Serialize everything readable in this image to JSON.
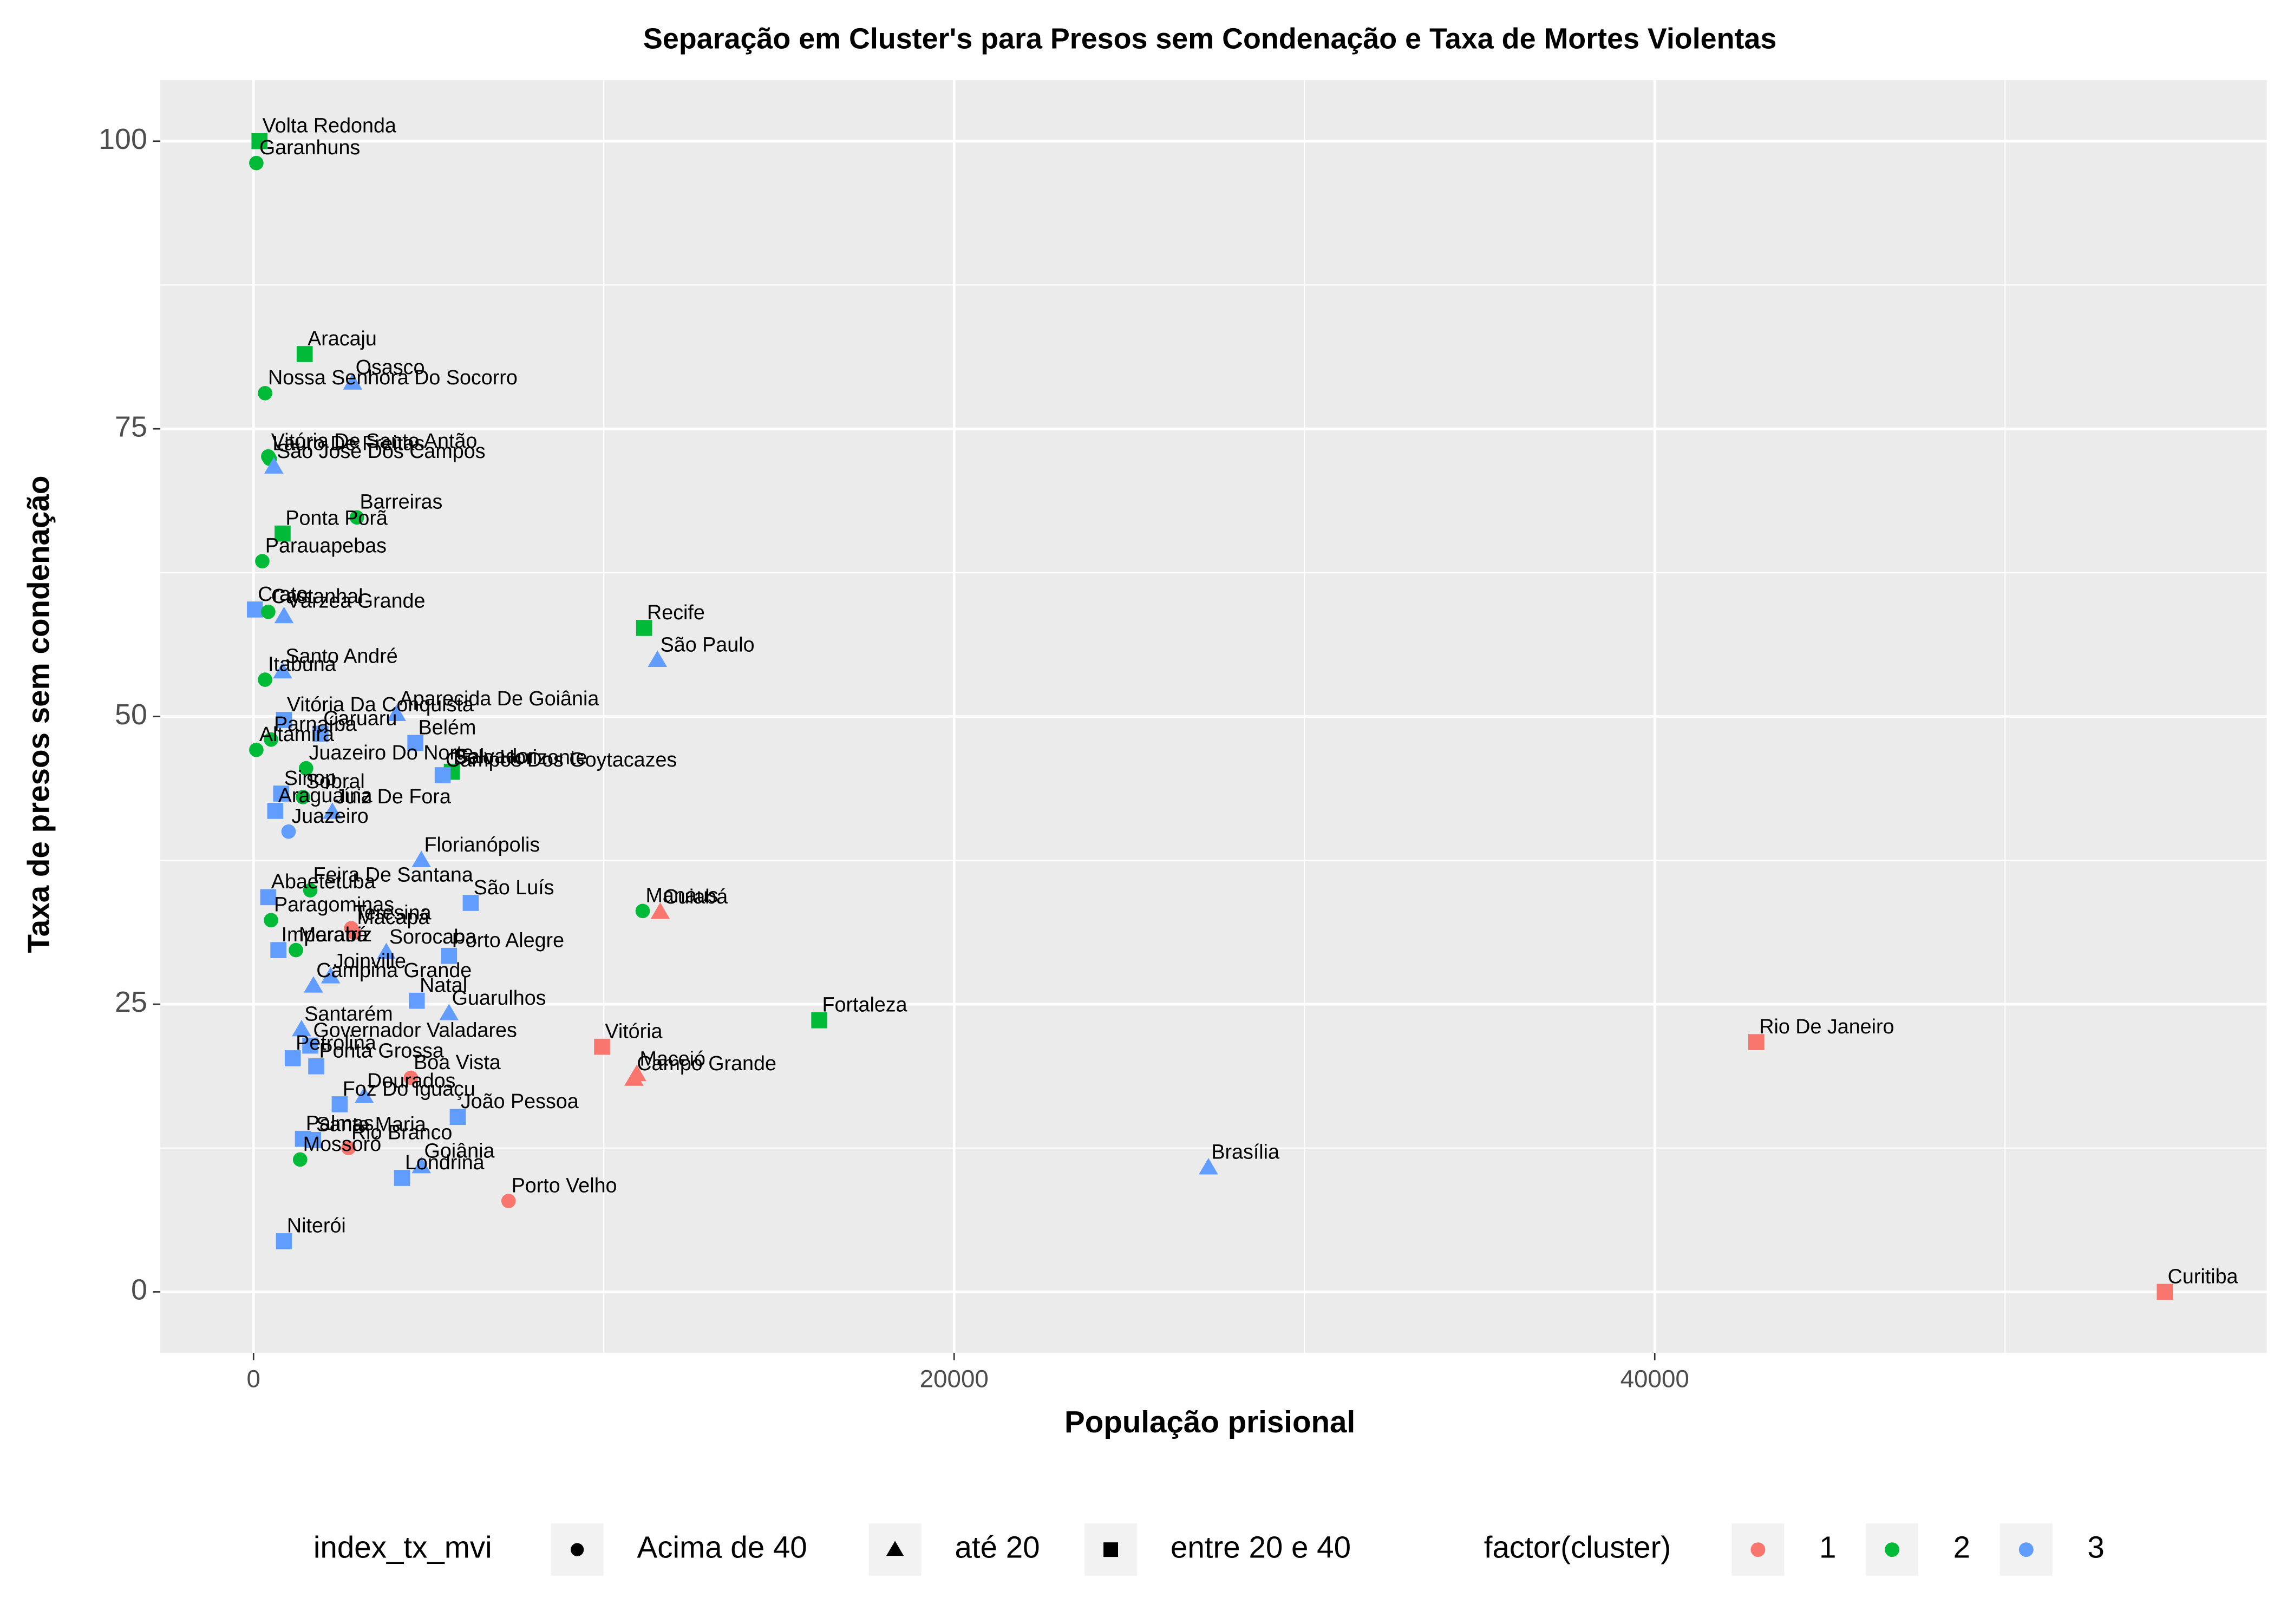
{
  "chart_data": {
    "type": "scatter",
    "title": "Separação em Cluster's para Presos sem Condenação e Taxa de Mortes Violentas",
    "x_label": "População prisional",
    "y_label": "Taxa de presos sem condenação",
    "xlim": [
      -2660,
      57470
    ],
    "ylim": [
      -5.3,
      105.3
    ],
    "xticks": [
      0,
      20000,
      40000
    ],
    "yticks": [
      0,
      25,
      50,
      75,
      100
    ],
    "grid": true,
    "legend_position": "bottom",
    "shape_legend": {
      "title": "index_tx_mvi",
      "entries": [
        "Acima de 40",
        "até 20",
        "entre 20 e 40"
      ]
    },
    "color_legend": {
      "title": "factor(cluster)",
      "entries": [
        {
          "name": "1",
          "color": "#F8766D"
        },
        {
          "name": "2",
          "color": "#00BA38"
        },
        {
          "name": "3",
          "color": "#619CFF"
        }
      ]
    },
    "points": [
      {
        "label": "Volta Redonda",
        "x": 170,
        "y": 100,
        "shape": 2,
        "cluster": 1
      },
      {
        "label": "Garanhuns",
        "x": 80,
        "y": 98.1,
        "shape": 0,
        "cluster": 1
      },
      {
        "label": "Aracaju",
        "x": 1460,
        "y": 81.5,
        "shape": 2,
        "cluster": 1
      },
      {
        "label": "Osasco",
        "x": 2830,
        "y": 79.0,
        "shape": 1,
        "cluster": 2
      },
      {
        "label": "Nossa Senhora Do Socorro",
        "x": 330,
        "y": 78.1,
        "shape": 0,
        "cluster": 1
      },
      {
        "label": "Vitória De Santo Antão",
        "x": 420,
        "y": 72.6,
        "shape": 0,
        "cluster": 1
      },
      {
        "label": "Lauro De Freitas",
        "x": 460,
        "y": 72.4,
        "shape": 0,
        "cluster": 1
      },
      {
        "label": "São José Dos Campos",
        "x": 580,
        "y": 71.7,
        "shape": 1,
        "cluster": 2
      },
      {
        "label": "Barreiras",
        "x": 2950,
        "y": 67.3,
        "shape": 0,
        "cluster": 1
      },
      {
        "label": "Ponta Porã",
        "x": 830,
        "y": 65.9,
        "shape": 2,
        "cluster": 1
      },
      {
        "label": "Parauapebas",
        "x": 250,
        "y": 63.5,
        "shape": 0,
        "cluster": 1
      },
      {
        "label": "Crato",
        "x": 40,
        "y": 59.3,
        "shape": 2,
        "cluster": 2
      },
      {
        "label": "Castanhal",
        "x": 420,
        "y": 59.1,
        "shape": 0,
        "cluster": 1
      },
      {
        "label": "Várzea Grande",
        "x": 870,
        "y": 58.7,
        "shape": 1,
        "cluster": 2
      },
      {
        "label": "Recife",
        "x": 11150,
        "y": 57.7,
        "shape": 2,
        "cluster": 1
      },
      {
        "label": "São Paulo",
        "x": 11530,
        "y": 54.9,
        "shape": 1,
        "cluster": 2
      },
      {
        "label": "Santo André",
        "x": 830,
        "y": 53.9,
        "shape": 1,
        "cluster": 2
      },
      {
        "label": "Itabuna",
        "x": 330,
        "y": 53.2,
        "shape": 0,
        "cluster": 1
      },
      {
        "label": "Aparecida De Goiânia",
        "x": 4080,
        "y": 50.2,
        "shape": 1,
        "cluster": 2
      },
      {
        "label": "Vitória Da Conquista",
        "x": 870,
        "y": 49.7,
        "shape": 2,
        "cluster": 2
      },
      {
        "label": "Caruaru",
        "x": 1910,
        "y": 48.5,
        "shape": 2,
        "cluster": 2
      },
      {
        "label": "Belém",
        "x": 4620,
        "y": 47.7,
        "shape": 2,
        "cluster": 2
      },
      {
        "label": "Parnaíba",
        "x": 500,
        "y": 48.0,
        "shape": 0,
        "cluster": 1
      },
      {
        "label": "Altamira",
        "x": 80,
        "y": 47.1,
        "shape": 0,
        "cluster": 1
      },
      {
        "label": "Juazeiro Do Norte",
        "x": 1500,
        "y": 45.5,
        "shape": 0,
        "cluster": 1
      },
      {
        "label": "Belo Horizonte",
        "x": 5620,
        "y": 45.1,
        "shape": 1,
        "cluster": 1
      },
      {
        "label": "Salvador",
        "x": 5660,
        "y": 45.2,
        "shape": 2,
        "cluster": 1
      },
      {
        "label": "Campos Dos Goytacazes",
        "x": 5400,
        "y": 44.9,
        "shape": 2,
        "cluster": 2
      },
      {
        "label": "Sinop",
        "x": 790,
        "y": 43.3,
        "shape": 2,
        "cluster": 2
      },
      {
        "label": "Sobral",
        "x": 1410,
        "y": 43.0,
        "shape": 0,
        "cluster": 1
      },
      {
        "label": "Juiz De Fora",
        "x": 2250,
        "y": 41.7,
        "shape": 1,
        "cluster": 2
      },
      {
        "label": "Araguaína",
        "x": 620,
        "y": 41.8,
        "shape": 2,
        "cluster": 2
      },
      {
        "label": "Juazeiro",
        "x": 1000,
        "y": 40.0,
        "shape": 0,
        "cluster": 2
      },
      {
        "label": "Florianópolis",
        "x": 4790,
        "y": 37.5,
        "shape": 1,
        "cluster": 2
      },
      {
        "label": "São Luís",
        "x": 6200,
        "y": 33.8,
        "shape": 2,
        "cluster": 2
      },
      {
        "label": "Abaetetuba",
        "x": 420,
        "y": 34.3,
        "shape": 2,
        "cluster": 2
      },
      {
        "label": "Feira De Santana",
        "x": 1620,
        "y": 34.9,
        "shape": 0,
        "cluster": 1
      },
      {
        "label": "Manaus",
        "x": 11110,
        "y": 33.1,
        "shape": 0,
        "cluster": 1
      },
      {
        "label": "Cuiabá",
        "x": 11610,
        "y": 33.0,
        "shape": 1,
        "cluster": 0
      },
      {
        "label": "Paragominas",
        "x": 500,
        "y": 32.3,
        "shape": 0,
        "cluster": 1
      },
      {
        "label": "Teresina",
        "x": 2790,
        "y": 31.6,
        "shape": 0,
        "cluster": 0
      },
      {
        "label": "Macapá",
        "x": 2870,
        "y": 31.2,
        "shape": 0,
        "cluster": 0
      },
      {
        "label": "Imperatriz",
        "x": 710,
        "y": 29.7,
        "shape": 2,
        "cluster": 2
      },
      {
        "label": "Marabá",
        "x": 1210,
        "y": 29.7,
        "shape": 0,
        "cluster": 1
      },
      {
        "label": "Sorocaba",
        "x": 3790,
        "y": 29.5,
        "shape": 1,
        "cluster": 2
      },
      {
        "label": "Porto Alegre",
        "x": 5580,
        "y": 29.2,
        "shape": 2,
        "cluster": 2
      },
      {
        "label": "Joinville",
        "x": 2200,
        "y": 27.4,
        "shape": 1,
        "cluster": 2
      },
      {
        "label": "Campina Grande",
        "x": 1710,
        "y": 26.6,
        "shape": 1,
        "cluster": 2
      },
      {
        "label": "Natal",
        "x": 4660,
        "y": 25.3,
        "shape": 2,
        "cluster": 2
      },
      {
        "label": "Guarulhos",
        "x": 5580,
        "y": 24.2,
        "shape": 1,
        "cluster": 2
      },
      {
        "label": "Fortaleza",
        "x": 16150,
        "y": 23.6,
        "shape": 2,
        "cluster": 1
      },
      {
        "label": "Rio De Janeiro",
        "x": 42900,
        "y": 21.7,
        "shape": 2,
        "cluster": 0
      },
      {
        "label": "Vitória",
        "x": 9950,
        "y": 21.3,
        "shape": 2,
        "cluster": 0
      },
      {
        "label": "Santarém",
        "x": 1370,
        "y": 22.8,
        "shape": 1,
        "cluster": 2
      },
      {
        "label": "Governador Valadares",
        "x": 1620,
        "y": 21.4,
        "shape": 2,
        "cluster": 2
      },
      {
        "label": "Petrolina",
        "x": 1120,
        "y": 20.3,
        "shape": 2,
        "cluster": 2
      },
      {
        "label": "Ponta Grossa",
        "x": 1790,
        "y": 19.6,
        "shape": 2,
        "cluster": 2
      },
      {
        "label": "Maceió",
        "x": 10940,
        "y": 18.9,
        "shape": 1,
        "cluster": 0
      },
      {
        "label": "Campo Grande",
        "x": 10860,
        "y": 18.5,
        "shape": 1,
        "cluster": 0
      },
      {
        "label": "Boa Vista",
        "x": 4490,
        "y": 18.6,
        "shape": 0,
        "cluster": 0
      },
      {
        "label": "Dourados",
        "x": 3160,
        "y": 17.0,
        "shape": 1,
        "cluster": 2
      },
      {
        "label": "Foz Do Iguaçu",
        "x": 2460,
        "y": 16.3,
        "shape": 2,
        "cluster": 2
      },
      {
        "label": "João Pessoa",
        "x": 5830,
        "y": 15.2,
        "shape": 2,
        "cluster": 2
      },
      {
        "label": "Palmas",
        "x": 1410,
        "y": 13.3,
        "shape": 2,
        "cluster": 2
      },
      {
        "label": "Santa Maria",
        "x": 1700,
        "y": 13.2,
        "shape": 2,
        "cluster": 2
      },
      {
        "label": "Rio Branco",
        "x": 2710,
        "y": 12.5,
        "shape": 0,
        "cluster": 0
      },
      {
        "label": "Mossoró",
        "x": 1330,
        "y": 11.5,
        "shape": 0,
        "cluster": 1
      },
      {
        "label": "Goiânia",
        "x": 4790,
        "y": 10.9,
        "shape": 1,
        "cluster": 2
      },
      {
        "label": "Londrina",
        "x": 4240,
        "y": 9.9,
        "shape": 2,
        "cluster": 2
      },
      {
        "label": "Porto Velho",
        "x": 7280,
        "y": 7.9,
        "shape": 0,
        "cluster": 0
      },
      {
        "label": "Brasília",
        "x": 27260,
        "y": 10.8,
        "shape": 1,
        "cluster": 2
      },
      {
        "label": "Niterói",
        "x": 870,
        "y": 4.4,
        "shape": 2,
        "cluster": 2
      },
      {
        "label": "Curitiba",
        "x": 54560,
        "y": 0,
        "shape": 2,
        "cluster": 0
      }
    ]
  }
}
